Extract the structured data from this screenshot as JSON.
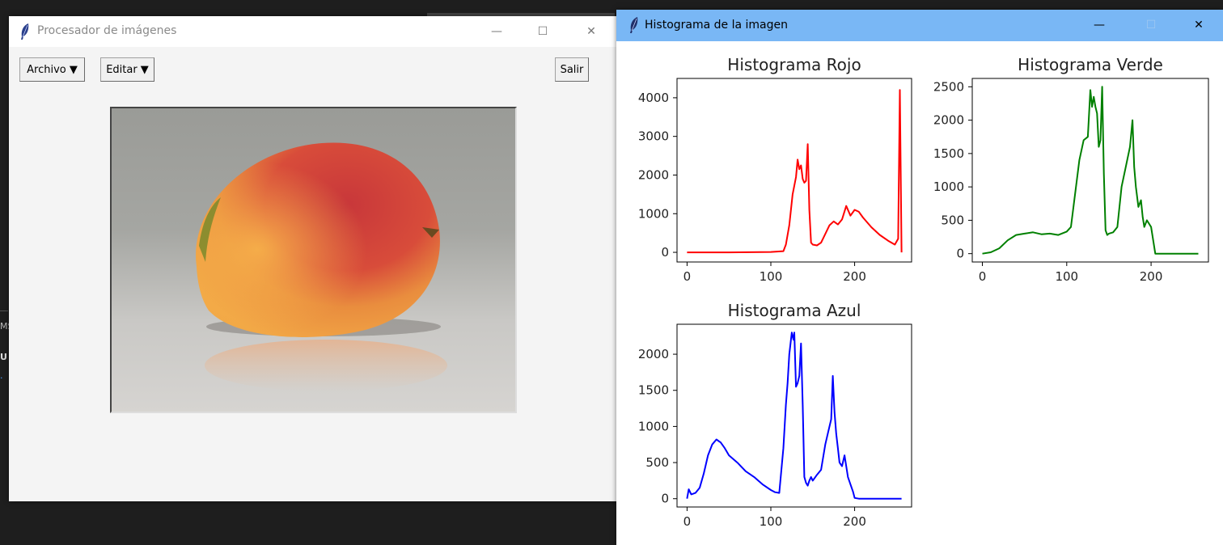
{
  "background": {
    "snippets": [
      "MS",
      "U",
      "."
    ]
  },
  "main_window": {
    "title": "Procesador de imágenes",
    "controls": {
      "minimize": "—",
      "maximize": "☐",
      "close": "✕"
    },
    "menu": {
      "archivo_label": "Archivo ▼",
      "editar_label": "Editar ▼",
      "salir_label": "Salir"
    },
    "image": {
      "icon": "mango-photo"
    }
  },
  "histogram_window": {
    "title": "Histograma de la imagen",
    "controls": {
      "minimize": "—",
      "maximize": "☐",
      "close": "✕"
    }
  },
  "colors": {
    "red": "#ff0000",
    "green": "#008000",
    "blue": "#0000ff",
    "titlebar_active": "#79b7f5"
  },
  "chart_data": [
    {
      "type": "line",
      "title": "Histograma Rojo",
      "color": "#ff0000",
      "xlim": [
        -12,
        268
      ],
      "ylim": [
        -250,
        4500
      ],
      "xticks": [
        0,
        100,
        200
      ],
      "yticks": [
        0,
        1000,
        2000,
        3000,
        4000
      ],
      "x": [
        0,
        50,
        100,
        115,
        118,
        122,
        126,
        130,
        132,
        134,
        136,
        138,
        140,
        142,
        144,
        146,
        148,
        150,
        155,
        160,
        170,
        175,
        180,
        185,
        190,
        195,
        200,
        205,
        210,
        220,
        230,
        240,
        248,
        252,
        254,
        256
      ],
      "y": [
        0,
        0,
        10,
        30,
        200,
        700,
        1500,
        1950,
        2400,
        2150,
        2250,
        1900,
        1800,
        1850,
        2800,
        1100,
        250,
        200,
        180,
        250,
        700,
        800,
        720,
        850,
        1200,
        950,
        1100,
        1050,
        900,
        650,
        450,
        300,
        200,
        350,
        4200,
        0
      ]
    },
    {
      "type": "line",
      "title": "Histograma Verde",
      "color": "#008000",
      "xlim": [
        -12,
        268
      ],
      "ylim": [
        -125,
        2625
      ],
      "xticks": [
        0,
        100,
        200
      ],
      "yticks": [
        0,
        500,
        1000,
        1500,
        2000,
        2500
      ],
      "x": [
        0,
        10,
        20,
        30,
        40,
        50,
        60,
        70,
        80,
        90,
        100,
        105,
        110,
        115,
        120,
        125,
        128,
        130,
        132,
        134,
        136,
        138,
        140,
        142,
        144,
        146,
        148,
        150,
        155,
        160,
        165,
        170,
        175,
        178,
        180,
        182,
        185,
        188,
        190,
        192,
        195,
        200,
        205,
        210,
        230,
        256
      ],
      "y": [
        0,
        20,
        80,
        200,
        280,
        300,
        320,
        290,
        300,
        280,
        330,
        400,
        900,
        1400,
        1700,
        1750,
        2450,
        2200,
        2350,
        2200,
        2100,
        1600,
        1700,
        2500,
        1200,
        350,
        280,
        300,
        320,
        400,
        1000,
        1300,
        1600,
        2000,
        1300,
        1000,
        700,
        800,
        550,
        400,
        500,
        400,
        0,
        0,
        0,
        0
      ]
    },
    {
      "type": "line",
      "title": "Histograma Azul",
      "color": "#0000ff",
      "xlim": [
        -12,
        268
      ],
      "ylim": [
        -115,
        2415
      ],
      "xticks": [
        0,
        100,
        200
      ],
      "yticks": [
        0,
        500,
        1000,
        1500,
        2000
      ],
      "x": [
        0,
        2,
        5,
        10,
        15,
        20,
        25,
        30,
        35,
        40,
        45,
        50,
        60,
        70,
        80,
        90,
        100,
        105,
        110,
        115,
        118,
        120,
        122,
        125,
        127,
        128,
        130,
        132,
        134,
        136,
        138,
        140,
        142,
        144,
        146,
        148,
        150,
        155,
        160,
        165,
        168,
        170,
        172,
        174,
        176,
        178,
        180,
        182,
        185,
        188,
        190,
        192,
        195,
        198,
        200,
        205,
        220,
        256
      ],
      "y": [
        0,
        130,
        60,
        80,
        150,
        350,
        600,
        750,
        820,
        780,
        700,
        600,
        500,
        380,
        300,
        200,
        120,
        90,
        80,
        700,
        1300,
        1600,
        2000,
        2300,
        2200,
        2300,
        1550,
        1600,
        1700,
        2150,
        1300,
        300,
        220,
        180,
        250,
        300,
        250,
        330,
        400,
        750,
        900,
        1000,
        1100,
        1700,
        1200,
        900,
        700,
        500,
        450,
        600,
        450,
        300,
        200,
        100,
        10,
        0,
        0,
        0
      ]
    }
  ]
}
